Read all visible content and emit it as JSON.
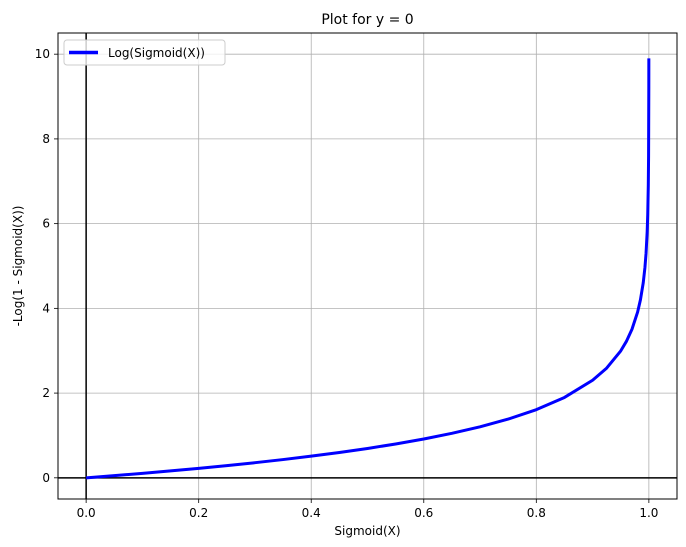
{
  "chart_data": {
    "type": "line",
    "title": "Plot for y = 0",
    "xlabel": "Sigmoid(X)",
    "ylabel": "-Log(1 - Sigmoid(X))",
    "xlim": [
      -0.05,
      1.05
    ],
    "ylim": [
      -0.5,
      10.5
    ],
    "x_ticks": [
      0.0,
      0.2,
      0.4,
      0.6,
      0.8,
      1.0
    ],
    "x_tick_labels": [
      "0.0",
      "0.2",
      "0.4",
      "0.6",
      "0.8",
      "1.0"
    ],
    "y_ticks": [
      0,
      2,
      4,
      6,
      8,
      10
    ],
    "y_tick_labels": [
      "0",
      "2",
      "4",
      "6",
      "8",
      "10"
    ],
    "grid": true,
    "reference_lines": {
      "horizontal_y": 0,
      "vertical_x": 0,
      "color": "#000000"
    },
    "legend": {
      "position": "upper left"
    },
    "series": [
      {
        "name": "Log(Sigmoid(X))",
        "color": "#0000ff",
        "x": [
          0.0,
          0.05,
          0.1,
          0.15,
          0.2,
          0.25,
          0.3,
          0.35,
          0.4,
          0.45,
          0.5,
          0.55,
          0.6,
          0.65,
          0.7,
          0.75,
          0.8,
          0.85,
          0.9,
          0.925,
          0.95,
          0.96,
          0.97,
          0.98,
          0.985,
          0.99,
          0.993,
          0.995,
          0.997,
          0.998,
          0.999,
          0.9995,
          0.9999,
          0.99995
        ],
        "y": [
          0.0,
          0.051,
          0.105,
          0.163,
          0.223,
          0.288,
          0.357,
          0.431,
          0.511,
          0.598,
          0.693,
          0.799,
          0.916,
          1.05,
          1.204,
          1.386,
          1.609,
          1.897,
          2.303,
          2.59,
          2.996,
          3.219,
          3.507,
          3.912,
          4.2,
          4.605,
          4.962,
          5.298,
          5.809,
          6.215,
          6.908,
          7.601,
          9.21,
          9.9
        ]
      }
    ]
  }
}
